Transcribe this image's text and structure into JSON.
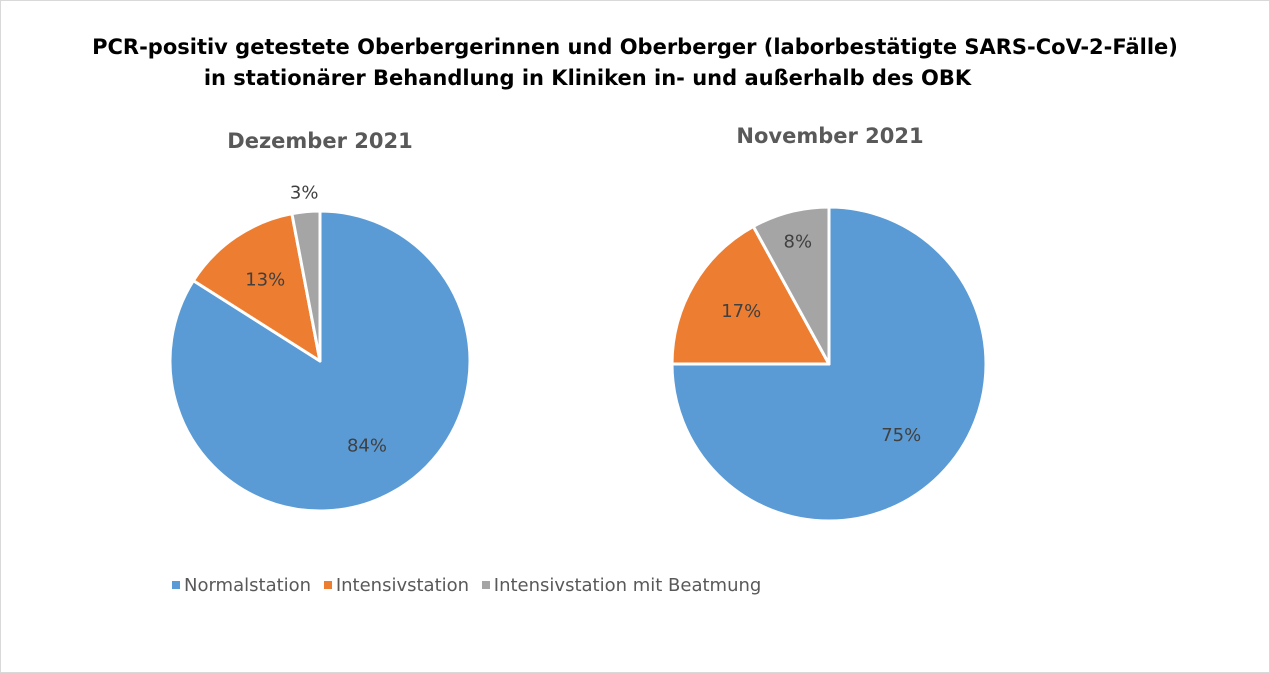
{
  "title_line1": "PCR-positiv getestete Oberbergerinnen und Oberberger (laborbestätigte SARS-CoV-2-Fälle)",
  "title_line2": "in stationärer Behandlung in Kliniken in- und außerhalb des OBK",
  "colors": {
    "normalstation": "#5b9bd5",
    "intensivstation": "#ed7d31",
    "beatmung": "#a5a5a5",
    "label_text": "#404040",
    "chart_title_text": "#595959"
  },
  "legend": [
    {
      "label": "Normalstation",
      "color": "#5b9bd5"
    },
    {
      "label": "Intensivstation",
      "color": "#ed7d31"
    },
    {
      "label": "Intensivstation mit Beatmung",
      "color": "#a5a5a5"
    }
  ],
  "chart_data": [
    {
      "type": "pie",
      "title": "Dezember 2021",
      "categories": [
        "Normalstation",
        "Intensivstation",
        "Intensivstation mit Beatmung"
      ],
      "values": [
        84,
        13,
        3
      ],
      "data_labels": [
        "84%",
        "13%",
        "3%"
      ],
      "start_angle_deg": 0,
      "direction": "clockwise",
      "legend": "bottom"
    },
    {
      "type": "pie",
      "title": "November 2021",
      "categories": [
        "Normalstation",
        "Intensivstation",
        "Intensivstation mit Beatmung"
      ],
      "values": [
        75,
        17,
        8
      ],
      "data_labels": [
        "75%",
        "17%",
        "8%"
      ],
      "start_angle_deg": 0,
      "direction": "clockwise",
      "legend": "bottom"
    }
  ]
}
